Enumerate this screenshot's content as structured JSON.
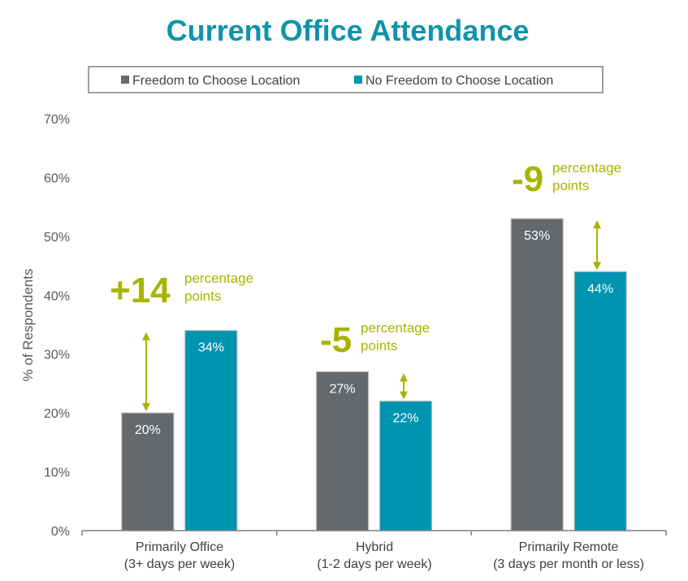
{
  "chart_data": {
    "type": "bar",
    "title": "Current Office Attendance",
    "ylabel": "% of Respondents",
    "ylim": [
      0,
      70
    ],
    "yticks": [
      0,
      10,
      20,
      30,
      40,
      50,
      60,
      70
    ],
    "tick_suffix": "%",
    "legend_placement": "top",
    "categories": [
      {
        "line1": "Primarily Office",
        "line2": "(3+ days per week)"
      },
      {
        "line1": "Hybrid",
        "line2": "(1-2 days per week)"
      },
      {
        "line1": "Primarily Remote",
        "line2": "(3 days per month or less)"
      }
    ],
    "series": [
      {
        "name": "Freedom to Choose Location",
        "color": "#65696b",
        "values": [
          20,
          27,
          53
        ],
        "labels": [
          "20%",
          "27%",
          "53%"
        ]
      },
      {
        "name": "No Freedom to Choose Location",
        "color": "#0094b0",
        "values": [
          34,
          22,
          44
        ],
        "labels": [
          "34%",
          "22%",
          "44%"
        ]
      }
    ],
    "annotations": [
      {
        "value": "+14",
        "unit_line1": "percentage",
        "unit_line2": "points"
      },
      {
        "value": "-5",
        "unit_line1": "percentage",
        "unit_line2": "points"
      },
      {
        "value": "-9",
        "unit_line1": "percentage",
        "unit_line2": "points"
      }
    ],
    "annotation_color": "#a8b400",
    "grid": false
  }
}
